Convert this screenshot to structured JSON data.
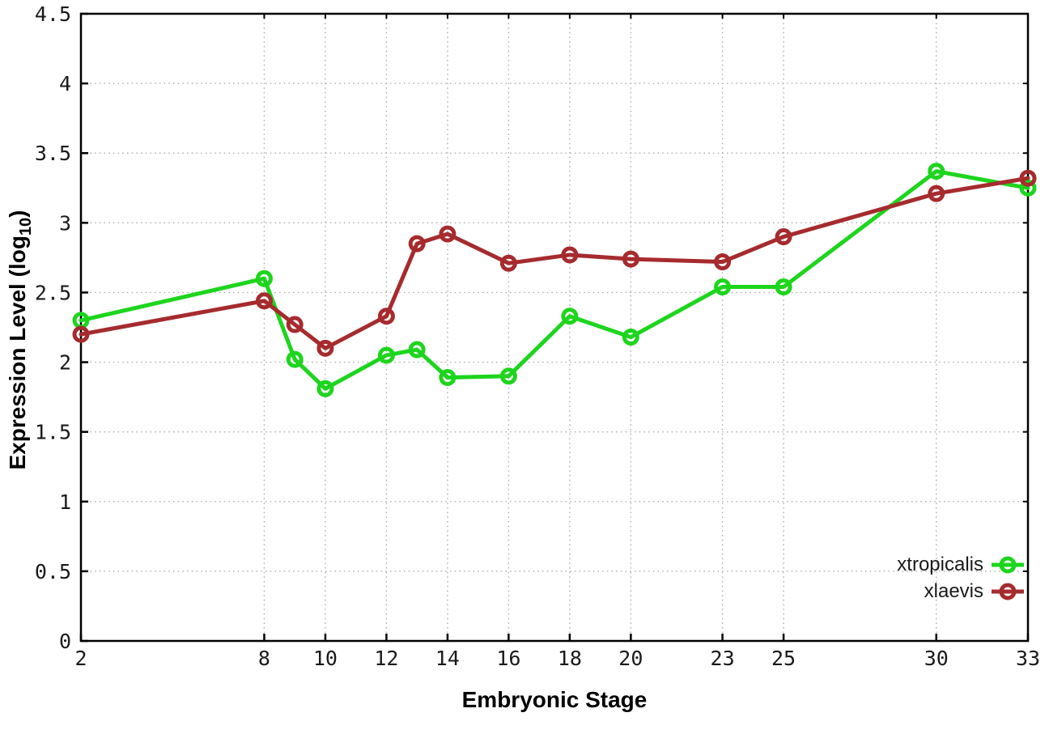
{
  "figure": {
    "background": "#ffffff",
    "border_color": "#000000",
    "grid_color": "#ababab",
    "tick_text_color": "#1a1a1a"
  },
  "axes": {
    "x_title": "Embryonic Stage",
    "y_title_main": "Expression Level (log",
    "y_title_sub": "10",
    "y_title_close": ")",
    "x_ticks": [
      {
        "v": 2,
        "label": "2"
      },
      {
        "v": 8,
        "label": "8"
      },
      {
        "v": 10,
        "label": "10"
      },
      {
        "v": 12,
        "label": "12"
      },
      {
        "v": 14,
        "label": "14"
      },
      {
        "v": 16,
        "label": "16"
      },
      {
        "v": 18,
        "label": "18"
      },
      {
        "v": 20,
        "label": "20"
      },
      {
        "v": 23,
        "label": "23"
      },
      {
        "v": 25,
        "label": "25"
      },
      {
        "v": 30,
        "label": "30"
      },
      {
        "v": 33,
        "label": "33"
      }
    ],
    "y_ticks": [
      {
        "v": 0,
        "label": "0"
      },
      {
        "v": 0.5,
        "label": "0.5"
      },
      {
        "v": 1,
        "label": "1"
      },
      {
        "v": 1.5,
        "label": "1.5"
      },
      {
        "v": 2,
        "label": "2"
      },
      {
        "v": 2.5,
        "label": "2.5"
      },
      {
        "v": 3,
        "label": "3"
      },
      {
        "v": 3.5,
        "label": "3.5"
      },
      {
        "v": 4,
        "label": "4"
      },
      {
        "v": 4.5,
        "label": "4.5"
      }
    ]
  },
  "legend": {
    "items": [
      {
        "label": "xtropicalis",
        "color": "#1dd51d"
      },
      {
        "label": "xlaevis",
        "color": "#a62b2e"
      }
    ]
  },
  "chart_data": {
    "type": "line",
    "title": "",
    "xlabel": "Embryonic Stage",
    "ylabel": "Expression Level (log10)",
    "xlim": [
      2,
      33
    ],
    "ylim": [
      0,
      4.5
    ],
    "grid": true,
    "grid_style": "dotted",
    "legend_position": "bottom-right",
    "marker": "open-circle",
    "x": [
      2,
      8,
      9,
      10,
      12,
      13,
      14,
      16,
      18,
      20,
      23,
      25,
      30,
      33
    ],
    "series": [
      {
        "name": "xtropicalis",
        "color": "#1dd51d",
        "values": [
          2.3,
          2.6,
          2.02,
          1.81,
          2.05,
          2.09,
          1.89,
          1.9,
          2.33,
          2.18,
          2.54,
          2.54,
          3.37,
          3.25
        ]
      },
      {
        "name": "xlaevis",
        "color": "#a62b2e",
        "values": [
          2.2,
          2.44,
          2.27,
          2.1,
          2.33,
          2.85,
          2.92,
          2.71,
          2.77,
          2.74,
          2.72,
          2.9,
          3.21,
          3.32
        ]
      }
    ]
  }
}
